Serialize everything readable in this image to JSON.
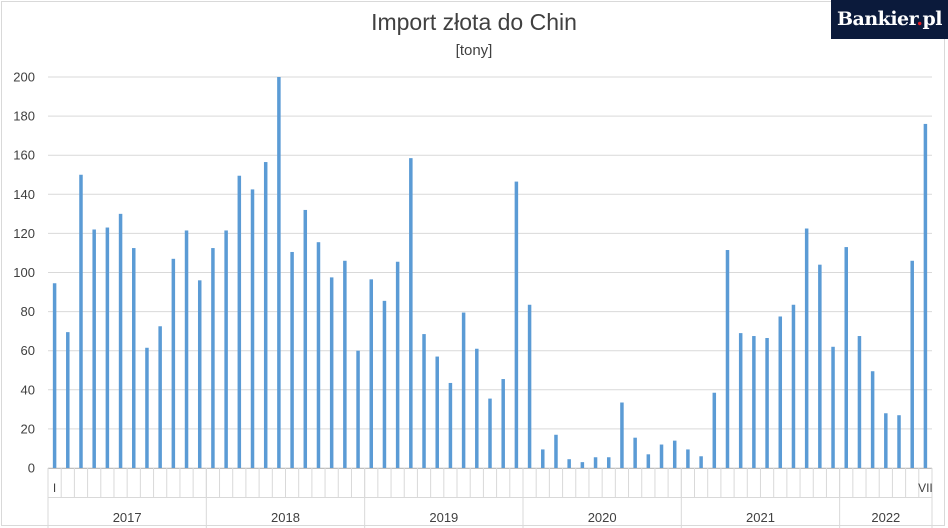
{
  "logo": {
    "brand": "Bankier",
    "dot": ".",
    "tld": "pl"
  },
  "chart_data": {
    "type": "bar",
    "title": "Import złota do Chin",
    "subtitle": "[tony]",
    "xlabel": "",
    "ylabel": "",
    "ylim": [
      0,
      200
    ],
    "yticks": [
      0,
      20,
      40,
      60,
      80,
      100,
      120,
      140,
      160,
      180,
      200
    ],
    "grid": true,
    "bar_color": "#5b9bd5",
    "first_month_label": "I",
    "last_month_label": "VII",
    "years": [
      {
        "label": "2017",
        "months": 12
      },
      {
        "label": "2018",
        "months": 12
      },
      {
        "label": "2019",
        "months": 12
      },
      {
        "label": "2020",
        "months": 12
      },
      {
        "label": "2021",
        "months": 12
      },
      {
        "label": "2022",
        "months": 7
      }
    ],
    "values": [
      94.5,
      69.5,
      150,
      122,
      123,
      130,
      112.5,
      61.5,
      72.5,
      107,
      121.5,
      96,
      112.5,
      121.5,
      149.5,
      142.5,
      156.5,
      200,
      110.5,
      132,
      115.5,
      97.5,
      106,
      60,
      96.5,
      85.5,
      105.5,
      158.5,
      68.5,
      57,
      43.5,
      79.5,
      61,
      35.5,
      45.5,
      146.5,
      83.5,
      9.5,
      17,
      4.5,
      3,
      5.5,
      5.5,
      33.5,
      15.5,
      7,
      12,
      14,
      9.5,
      6,
      38.5,
      111.5,
      69,
      67.5,
      66.5,
      77.5,
      83.5,
      122.5,
      104,
      62,
      113,
      67.5,
      49.5,
      28,
      27,
      106,
      176
    ]
  }
}
